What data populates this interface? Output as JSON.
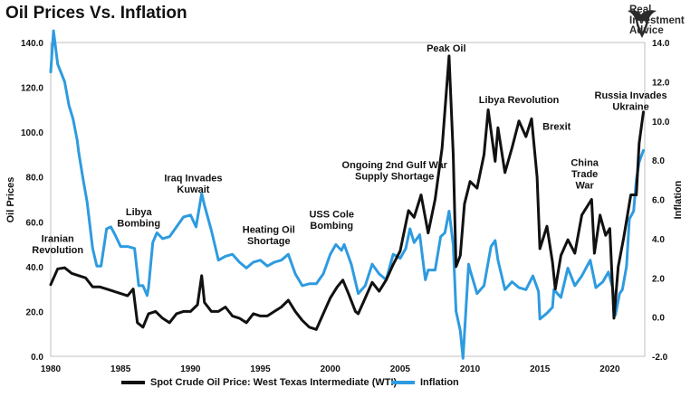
{
  "title": "Oil Prices Vs. Inflation",
  "logo": {
    "line1": "Real",
    "line2": "Investment",
    "line3": "Advice",
    "icon": "bull-head-icon"
  },
  "chart_data": {
    "type": "line",
    "x_range": [
      1980,
      2022.5
    ],
    "x_ticks": [
      "1980",
      "1985",
      "1990",
      "1995",
      "2000",
      "2005",
      "2010",
      "2015",
      "2020"
    ],
    "y_left": {
      "label": "Oil Prices",
      "range": [
        0,
        140
      ],
      "ticks": [
        "0.0",
        "20.0",
        "40.0",
        "60.0",
        "80.0",
        "100.0",
        "120.0",
        "140.0"
      ]
    },
    "y_right": {
      "label": "Inflation",
      "range": [
        -2,
        14
      ],
      "ticks": [
        "-2.0",
        "0.0",
        "2.0",
        "4.0",
        "6.0",
        "8.0",
        "10.0",
        "12.0",
        "14.0"
      ]
    },
    "grid": false,
    "legend_position": "bottom",
    "series": [
      {
        "name": "Spot Crude Oil Price: West Texas Intermediate (WTI)",
        "axis": "left",
        "color": "#111111",
        "points": [
          [
            1980,
            32
          ],
          [
            1980.5,
            39
          ],
          [
            1981,
            39.5
          ],
          [
            1981.5,
            37
          ],
          [
            1982,
            36
          ],
          [
            1982.5,
            35
          ],
          [
            1983,
            31
          ],
          [
            1983.5,
            31
          ],
          [
            1984,
            30
          ],
          [
            1984.5,
            29
          ],
          [
            1985,
            28
          ],
          [
            1985.5,
            27
          ],
          [
            1985.9,
            30
          ],
          [
            1986.2,
            15
          ],
          [
            1986.6,
            13
          ],
          [
            1987,
            19
          ],
          [
            1987.5,
            20
          ],
          [
            1988,
            17
          ],
          [
            1988.5,
            15
          ],
          [
            1989,
            19
          ],
          [
            1989.5,
            20
          ],
          [
            1990,
            20
          ],
          [
            1990.5,
            23
          ],
          [
            1990.8,
            36
          ],
          [
            1991,
            24
          ],
          [
            1991.5,
            20
          ],
          [
            1992,
            20
          ],
          [
            1992.5,
            22
          ],
          [
            1993,
            18
          ],
          [
            1993.5,
            17
          ],
          [
            1994,
            15
          ],
          [
            1994.5,
            19
          ],
          [
            1995,
            18
          ],
          [
            1995.5,
            18
          ],
          [
            1996,
            20
          ],
          [
            1996.5,
            22
          ],
          [
            1997,
            25
          ],
          [
            1997.5,
            20
          ],
          [
            1998,
            16
          ],
          [
            1998.5,
            13
          ],
          [
            1999,
            12
          ],
          [
            1999.5,
            19
          ],
          [
            2000,
            26
          ],
          [
            2000.5,
            31
          ],
          [
            2000.9,
            34
          ],
          [
            2001.3,
            28
          ],
          [
            2001.8,
            20
          ],
          [
            2002,
            19
          ],
          [
            2002.5,
            26
          ],
          [
            2003,
            33
          ],
          [
            2003.5,
            29
          ],
          [
            2004,
            34
          ],
          [
            2004.5,
            41
          ],
          [
            2005,
            47
          ],
          [
            2005.6,
            65
          ],
          [
            2006,
            62
          ],
          [
            2006.5,
            72
          ],
          [
            2007,
            55
          ],
          [
            2007.5,
            70
          ],
          [
            2008,
            93
          ],
          [
            2008.5,
            134
          ],
          [
            2008.8,
            90
          ],
          [
            2009,
            40
          ],
          [
            2009.3,
            45
          ],
          [
            2009.6,
            68
          ],
          [
            2010,
            78
          ],
          [
            2010.5,
            75
          ],
          [
            2011,
            90
          ],
          [
            2011.3,
            110
          ],
          [
            2011.8,
            87
          ],
          [
            2012,
            102
          ],
          [
            2012.5,
            82
          ],
          [
            2013,
            93
          ],
          [
            2013.5,
            105
          ],
          [
            2014,
            98
          ],
          [
            2014.4,
            106
          ],
          [
            2014.8,
            80
          ],
          [
            2015,
            48
          ],
          [
            2015.5,
            58
          ],
          [
            2015.9,
            42
          ],
          [
            2016.1,
            30
          ],
          [
            2016.5,
            45
          ],
          [
            2017,
            52
          ],
          [
            2017.5,
            46
          ],
          [
            2018,
            63
          ],
          [
            2018.7,
            70
          ],
          [
            2018.9,
            46
          ],
          [
            2019.3,
            63
          ],
          [
            2019.7,
            54
          ],
          [
            2020,
            57
          ],
          [
            2020.3,
            17
          ],
          [
            2020.6,
            40
          ],
          [
            2021,
            53
          ],
          [
            2021.5,
            72
          ],
          [
            2021.9,
            72
          ],
          [
            2022.1,
            95
          ],
          [
            2022.4,
            109
          ]
        ]
      },
      {
        "name": "Inflation",
        "axis": "right",
        "color": "#2e9be0",
        "points": [
          [
            1980,
            12.5
          ],
          [
            1980.2,
            14.6
          ],
          [
            1980.5,
            12.9
          ],
          [
            1981,
            12
          ],
          [
            1981.3,
            10.8
          ],
          [
            1981.6,
            10.1
          ],
          [
            1981.9,
            9
          ],
          [
            1982,
            8.4
          ],
          [
            1982.3,
            7.1
          ],
          [
            1982.6,
            5.9
          ],
          [
            1983,
            3.5
          ],
          [
            1983.3,
            2.6
          ],
          [
            1983.6,
            2.6
          ],
          [
            1984,
            4.5
          ],
          [
            1984.3,
            4.6
          ],
          [
            1984.6,
            4.2
          ],
          [
            1985,
            3.6
          ],
          [
            1985.5,
            3.6
          ],
          [
            1986,
            3.5
          ],
          [
            1986.3,
            1.6
          ],
          [
            1986.6,
            1.6
          ],
          [
            1986.9,
            1.1
          ],
          [
            1987,
            1.5
          ],
          [
            1987.3,
            3.8
          ],
          [
            1987.6,
            4.3
          ],
          [
            1988,
            4
          ],
          [
            1988.5,
            4.1
          ],
          [
            1989,
            4.6
          ],
          [
            1989.5,
            5.1
          ],
          [
            1990,
            5.2
          ],
          [
            1990.4,
            4.6
          ],
          [
            1990.8,
            6.3
          ],
          [
            1991,
            5.7
          ],
          [
            1991.5,
            4.4
          ],
          [
            1992,
            2.9
          ],
          [
            1992.5,
            3.1
          ],
          [
            1993,
            3.2
          ],
          [
            1993.5,
            2.8
          ],
          [
            1994,
            2.5
          ],
          [
            1994.5,
            2.8
          ],
          [
            1995,
            2.9
          ],
          [
            1995.5,
            2.6
          ],
          [
            1996,
            2.8
          ],
          [
            1996.5,
            2.9
          ],
          [
            1997,
            3.2
          ],
          [
            1997.5,
            2.2
          ],
          [
            1998,
            1.6
          ],
          [
            1998.5,
            1.7
          ],
          [
            1999,
            1.7
          ],
          [
            1999.5,
            2.2
          ],
          [
            2000,
            3.2
          ],
          [
            2000.4,
            3.7
          ],
          [
            2000.8,
            3.4
          ],
          [
            2001,
            3.7
          ],
          [
            2001.5,
            2.7
          ],
          [
            2002,
            1.2
          ],
          [
            2002.5,
            1.6
          ],
          [
            2003,
            2.7
          ],
          [
            2003.5,
            2.2
          ],
          [
            2004,
            1.9
          ],
          [
            2004.5,
            3.2
          ],
          [
            2005,
            3
          ],
          [
            2005.4,
            3.5
          ],
          [
            2005.7,
            4.5
          ],
          [
            2006,
            3.8
          ],
          [
            2006.4,
            4.2
          ],
          [
            2006.8,
            1.9
          ],
          [
            2007,
            2.4
          ],
          [
            2007.5,
            2.4
          ],
          [
            2007.9,
            4.1
          ],
          [
            2008.2,
            4.3
          ],
          [
            2008.5,
            5.4
          ],
          [
            2008.8,
            3.7
          ],
          [
            2009,
            0.3
          ],
          [
            2009.3,
            -0.7
          ],
          [
            2009.5,
            -2.1
          ],
          [
            2009.9,
            2.7
          ],
          [
            2010,
            2.4
          ],
          [
            2010.5,
            1.2
          ],
          [
            2011,
            1.6
          ],
          [
            2011.5,
            3.6
          ],
          [
            2011.8,
            3.9
          ],
          [
            2012,
            2.9
          ],
          [
            2012.5,
            1.4
          ],
          [
            2013,
            1.8
          ],
          [
            2013.5,
            1.5
          ],
          [
            2014,
            1.4
          ],
          [
            2014.5,
            2.1
          ],
          [
            2014.9,
            1.3
          ],
          [
            2015,
            -0.1
          ],
          [
            2015.5,
            0.2
          ],
          [
            2015.9,
            0.5
          ],
          [
            2016,
            1.4
          ],
          [
            2016.5,
            1
          ],
          [
            2017,
            2.5
          ],
          [
            2017.5,
            1.6
          ],
          [
            2018,
            2.1
          ],
          [
            2018.6,
            2.9
          ],
          [
            2019,
            1.5
          ],
          [
            2019.5,
            1.8
          ],
          [
            2019.9,
            2.3
          ],
          [
            2020.2,
            1.5
          ],
          [
            2020.4,
            0.1
          ],
          [
            2020.7,
            1.2
          ],
          [
            2020.9,
            1.4
          ],
          [
            2021.2,
            2.6
          ],
          [
            2021.4,
            5
          ],
          [
            2021.7,
            5.4
          ],
          [
            2021.9,
            7
          ],
          [
            2022.1,
            7.9
          ],
          [
            2022.4,
            8.5
          ]
        ]
      }
    ],
    "annotations": [
      {
        "lines": [
          "Iranian",
          "Revolution"
        ],
        "at": [
          1980.5,
          51
        ]
      },
      {
        "lines": [
          "Libya",
          "Bombing"
        ],
        "at": [
          1986.3,
          63
        ]
      },
      {
        "lines": [
          "Iraq Invades",
          "Kuwait"
        ],
        "at": [
          1990.2,
          78
        ]
      },
      {
        "lines": [
          "Heating Oil",
          "Shortage"
        ],
        "at": [
          1995.6,
          55
        ]
      },
      {
        "lines": [
          "USS Cole",
          "Bombing"
        ],
        "at": [
          2000.1,
          62
        ]
      },
      {
        "lines": [
          "Ongoing 2nd Gulf War",
          "Supply Shortage"
        ],
        "at": [
          2004.6,
          84
        ]
      },
      {
        "lines": [
          "Peak Oil"
        ],
        "at": [
          2008.3,
          136
        ]
      },
      {
        "lines": [
          "Libya Revolution"
        ],
        "at": [
          2013.5,
          113
        ]
      },
      {
        "lines": [
          "Brexit"
        ],
        "at": [
          2016.2,
          101
        ]
      },
      {
        "lines": [
          "China",
          "Trade",
          "War"
        ],
        "at": [
          2018.2,
          85
        ]
      },
      {
        "lines": [
          "Russia Invades",
          "Ukraine"
        ],
        "at": [
          2021.5,
          115
        ]
      }
    ]
  }
}
